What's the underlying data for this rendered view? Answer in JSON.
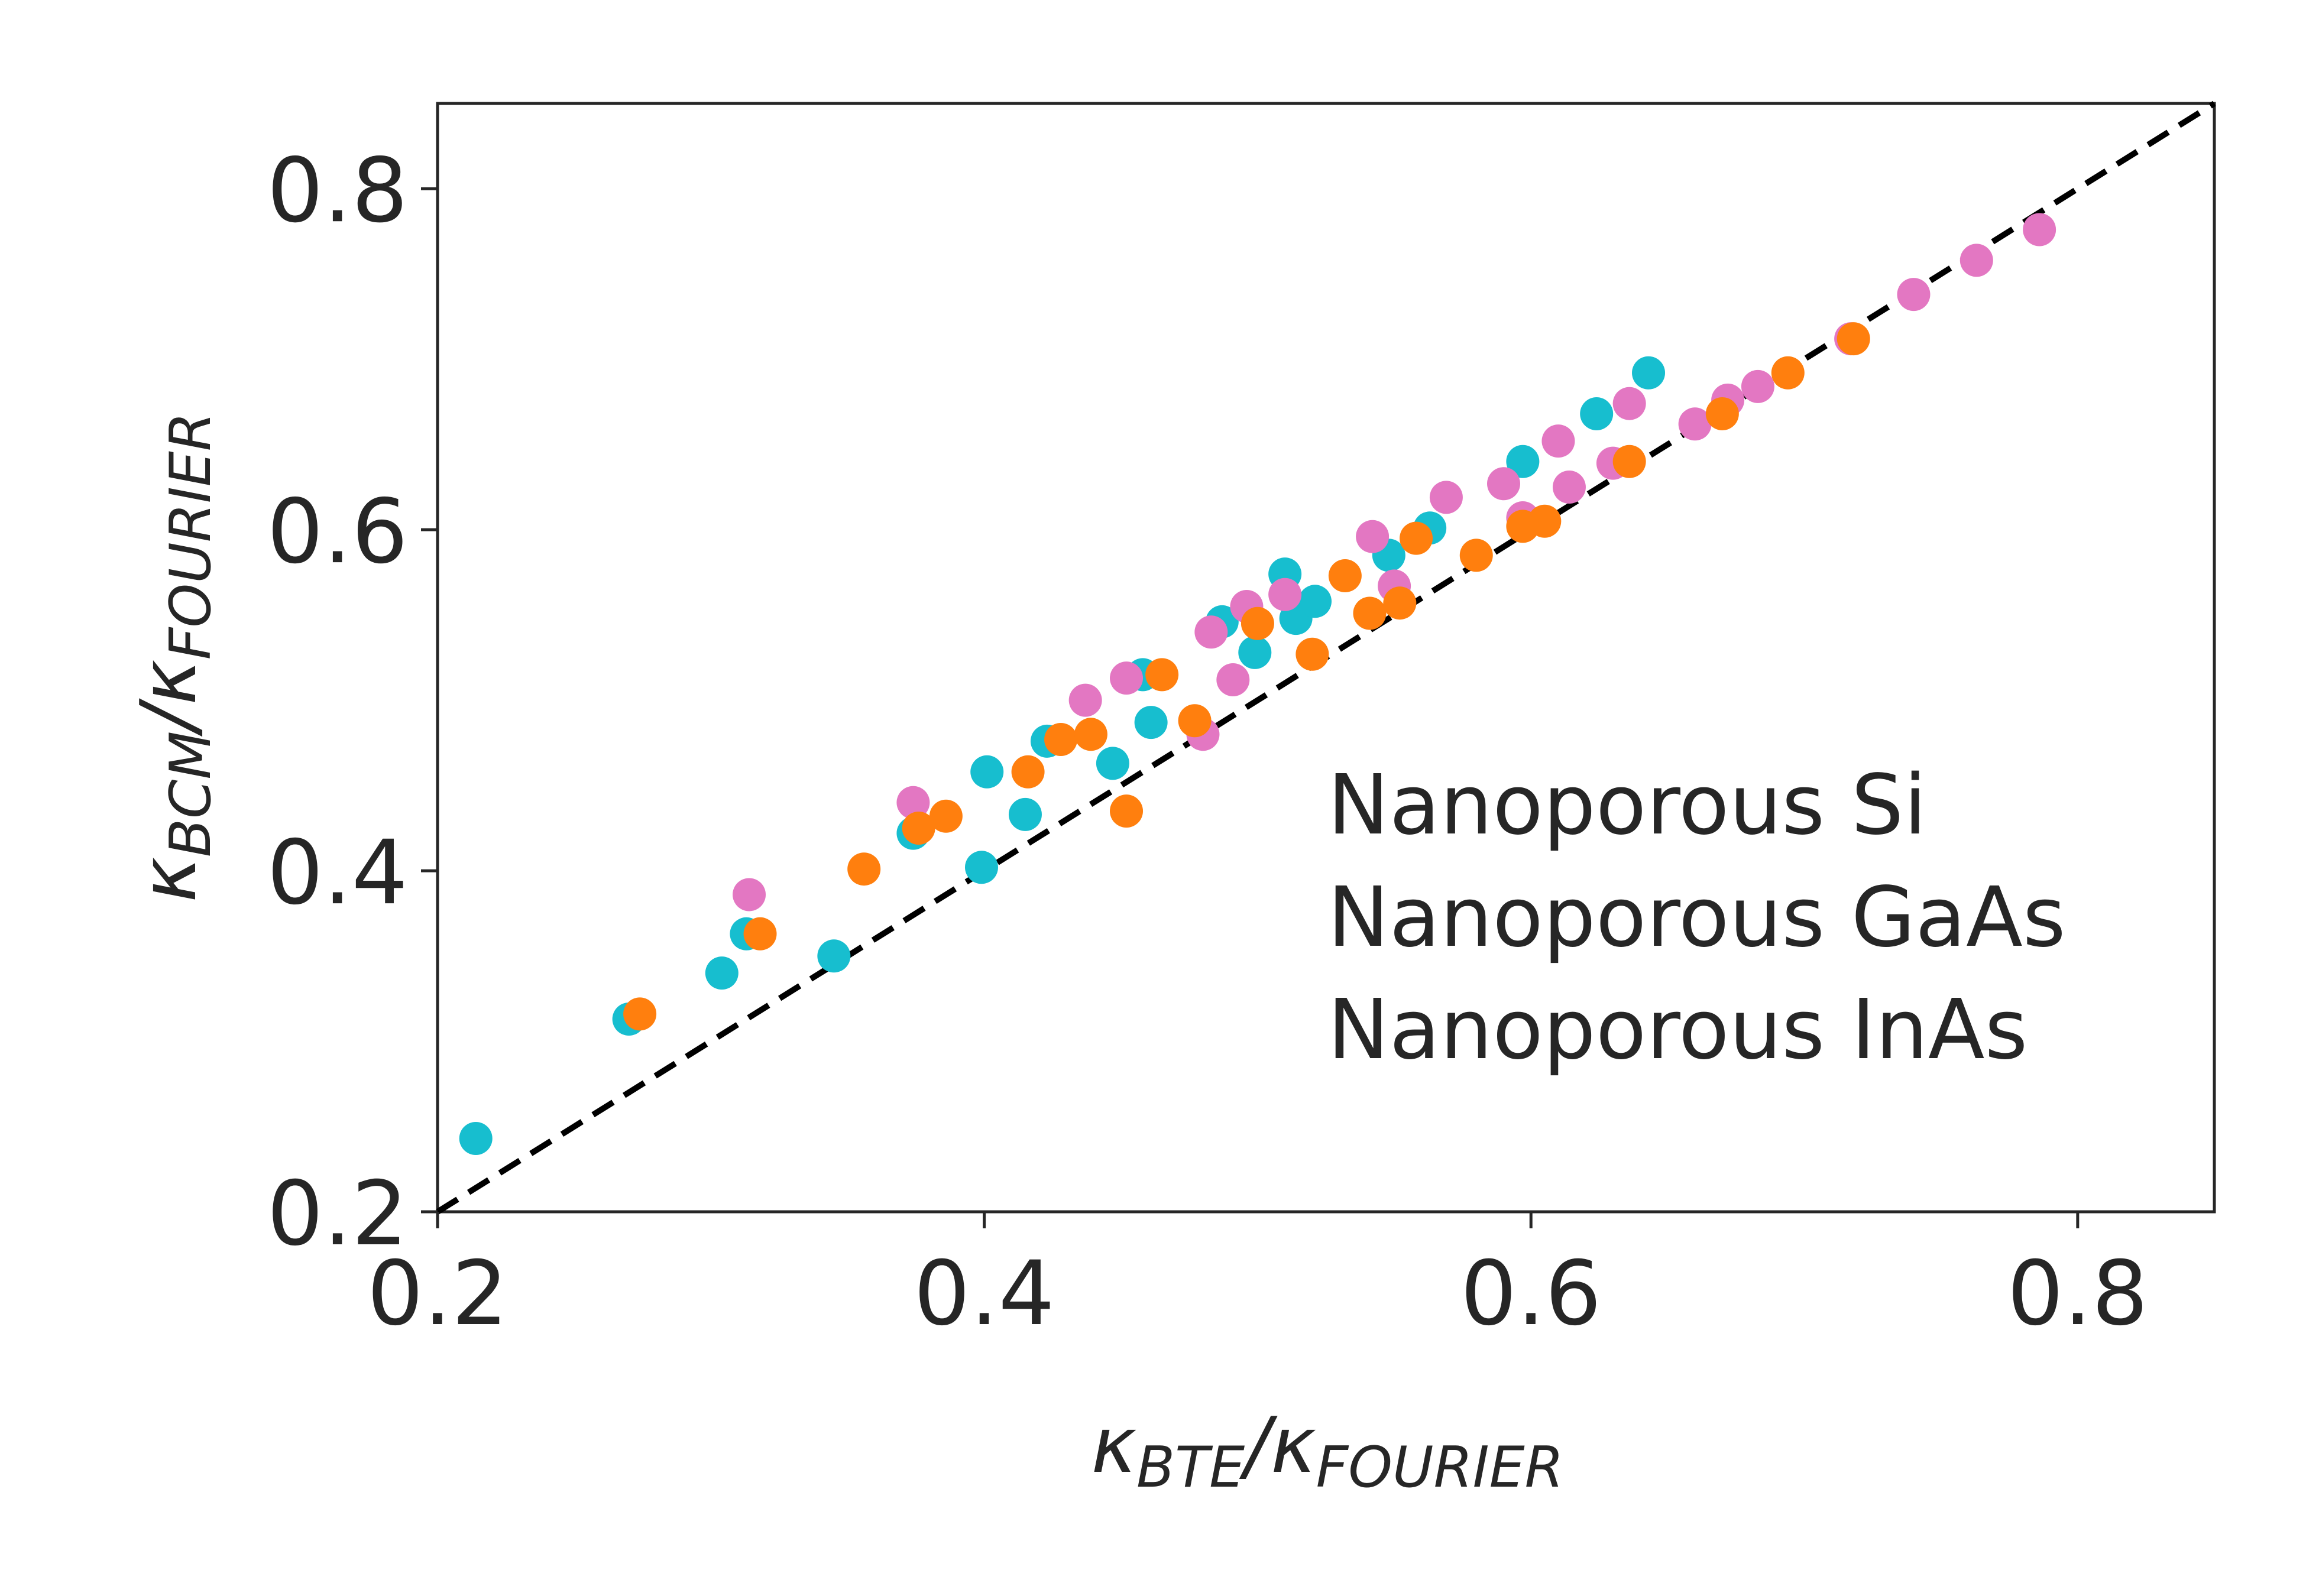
{
  "chart_data": {
    "type": "scatter",
    "xlabel": {
      "main1": "κ",
      "sub1": "BTE",
      "sep": "/",
      "main2": "κ",
      "sub2": "FOURIER"
    },
    "ylabel": {
      "main1": "κ",
      "sub1": "BCM",
      "sep": "/",
      "main2": "κ",
      "sub2": "FOURIER"
    },
    "xlim": [
      0.2,
      0.85
    ],
    "ylim": [
      0.2,
      0.85
    ],
    "xticks": [
      "0.2",
      "0.4",
      "0.6",
      "0.8"
    ],
    "yticks": [
      "0.2",
      "0.4",
      "0.6",
      "0.8"
    ],
    "grid": false,
    "legend_position": "lower-right",
    "reference_line": {
      "style": "dashed",
      "color": "#000000",
      "from": [
        0.2,
        0.2
      ],
      "to": [
        0.85,
        0.85
      ]
    },
    "series": [
      {
        "name": "Nanoporous Si",
        "color": "#17becf",
        "points": [
          [
            0.214,
            0.243
          ],
          [
            0.27,
            0.313
          ],
          [
            0.304,
            0.34
          ],
          [
            0.313,
            0.363
          ],
          [
            0.345,
            0.35
          ],
          [
            0.374,
            0.422
          ],
          [
            0.399,
            0.402
          ],
          [
            0.401,
            0.458
          ],
          [
            0.415,
            0.433
          ],
          [
            0.423,
            0.476
          ],
          [
            0.447,
            0.463
          ],
          [
            0.458,
            0.515
          ],
          [
            0.461,
            0.487
          ],
          [
            0.487,
            0.546
          ],
          [
            0.499,
            0.528
          ],
          [
            0.51,
            0.574
          ],
          [
            0.514,
            0.548
          ],
          [
            0.521,
            0.558
          ],
          [
            0.548,
            0.585
          ],
          [
            0.563,
            0.601
          ],
          [
            0.597,
            0.64
          ],
          [
            0.624,
            0.668
          ],
          [
            0.643,
            0.692
          ]
        ]
      },
      {
        "name": "Nanoporous GaAs",
        "color": "#e377c2",
        "points": [
          [
            0.314,
            0.386
          ],
          [
            0.374,
            0.44
          ],
          [
            0.437,
            0.5
          ],
          [
            0.452,
            0.513
          ],
          [
            0.48,
            0.48
          ],
          [
            0.483,
            0.54
          ],
          [
            0.491,
            0.512
          ],
          [
            0.496,
            0.555
          ],
          [
            0.51,
            0.562
          ],
          [
            0.542,
            0.596
          ],
          [
            0.55,
            0.567
          ],
          [
            0.569,
            0.619
          ],
          [
            0.59,
            0.627
          ],
          [
            0.597,
            0.607
          ],
          [
            0.61,
            0.652
          ],
          [
            0.614,
            0.625
          ],
          [
            0.63,
            0.639
          ],
          [
            0.636,
            0.674
          ],
          [
            0.66,
            0.662
          ],
          [
            0.672,
            0.676
          ],
          [
            0.683,
            0.684
          ],
          [
            0.717,
            0.712
          ],
          [
            0.74,
            0.738
          ],
          [
            0.763,
            0.758
          ],
          [
            0.786,
            0.776
          ]
        ]
      },
      {
        "name": "Nanoporous InAs",
        "color": "#ff7f0e",
        "points": [
          [
            0.274,
            0.316
          ],
          [
            0.318,
            0.363
          ],
          [
            0.356,
            0.401
          ],
          [
            0.376,
            0.425
          ],
          [
            0.386,
            0.432
          ],
          [
            0.416,
            0.458
          ],
          [
            0.428,
            0.477
          ],
          [
            0.439,
            0.48
          ],
          [
            0.452,
            0.435
          ],
          [
            0.465,
            0.515
          ],
          [
            0.477,
            0.488
          ],
          [
            0.5,
            0.545
          ],
          [
            0.52,
            0.527
          ],
          [
            0.532,
            0.573
          ],
          [
            0.541,
            0.551
          ],
          [
            0.552,
            0.557
          ],
          [
            0.558,
            0.595
          ],
          [
            0.58,
            0.585
          ],
          [
            0.597,
            0.602
          ],
          [
            0.605,
            0.605
          ],
          [
            0.636,
            0.64
          ],
          [
            0.67,
            0.668
          ],
          [
            0.694,
            0.692
          ],
          [
            0.718,
            0.712
          ]
        ]
      }
    ]
  }
}
